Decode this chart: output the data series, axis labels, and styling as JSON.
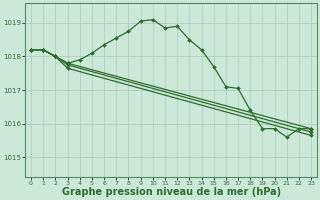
{
  "bg_color": "#cce8d8",
  "grid_color": "#aaccbb",
  "line_color": "#2d6e2d",
  "marker_color": "#2d6e2d",
  "xlabel": "Graphe pression niveau de la mer (hPa)",
  "xlabel_fontsize": 7,
  "yticks": [
    1015,
    1016,
    1017,
    1018,
    1019
  ],
  "ylim": [
    1014.4,
    1019.6
  ],
  "xlim": [
    -0.5,
    23.5
  ],
  "xticks": [
    0,
    1,
    2,
    3,
    4,
    5,
    6,
    7,
    8,
    9,
    10,
    11,
    12,
    13,
    14,
    15,
    16,
    17,
    18,
    19,
    20,
    21,
    22,
    23
  ],
  "lines": [
    {
      "x": [
        0,
        1,
        2,
        3,
        4,
        5,
        6,
        7,
        8,
        9,
        10,
        11,
        12,
        13,
        14,
        15,
        16,
        17,
        18,
        19,
        20,
        21,
        22,
        23
      ],
      "y": [
        1018.2,
        1018.2,
        1018.0,
        1017.8,
        1017.9,
        1018.1,
        1018.35,
        1018.55,
        1018.75,
        1019.05,
        1019.1,
        1018.85,
        1018.9,
        1018.5,
        1018.2,
        1017.7,
        1017.1,
        1017.05,
        1016.4,
        1015.85,
        1015.85,
        1015.6,
        1015.85,
        1015.85
      ]
    },
    {
      "x": [
        0,
        1,
        2,
        3,
        23
      ],
      "y": [
        1018.2,
        1018.2,
        1018.0,
        1017.8,
        1015.85
      ]
    },
    {
      "x": [
        0,
        1,
        2,
        3,
        23
      ],
      "y": [
        1018.2,
        1018.2,
        1018.0,
        1017.75,
        1015.75
      ]
    },
    {
      "x": [
        0,
        1,
        2,
        3,
        23
      ],
      "y": [
        1018.2,
        1018.2,
        1018.0,
        1017.65,
        1015.65
      ]
    }
  ]
}
